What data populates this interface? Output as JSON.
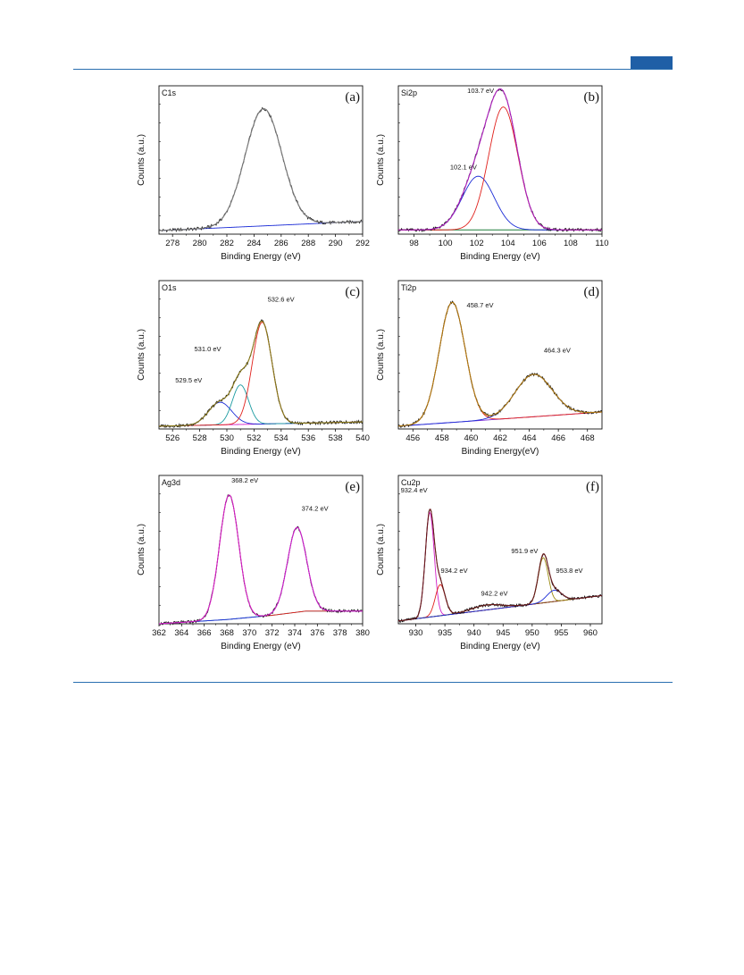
{
  "chart_data": [
    {
      "type": "line",
      "panel_letter": "(a)",
      "title": "C1s",
      "xlabel": "Binding Energy (eV)",
      "ylabel": "Counts (a.u.)",
      "xlim": [
        277,
        292
      ],
      "xticks": [
        278,
        280,
        282,
        284,
        286,
        288,
        290,
        292
      ],
      "ylim": [
        0,
        1.05
      ],
      "baseline": [
        [
          277,
          0.025
        ],
        [
          292,
          0.09
        ]
      ],
      "peaks": [
        {
          "center": 284.7,
          "height": 0.83,
          "fwhm": 3.2,
          "color": "#111111"
        }
      ],
      "envelope_color": "#7a7a7a",
      "background_color": "#1a2bd6",
      "annotations": []
    },
    {
      "type": "line",
      "panel_letter": "(b)",
      "title": "Si2p",
      "xlabel": "Binding Energy (eV)",
      "ylabel": "Counts (a.u.)",
      "xlim": [
        97,
        110
      ],
      "xticks": [
        98,
        100,
        102,
        104,
        106,
        108,
        110
      ],
      "ylim": [
        0,
        1.05
      ],
      "baseline": [
        [
          97,
          0.03
        ],
        [
          110,
          0.03
        ]
      ],
      "peaks": [
        {
          "center": 102.1,
          "height": 0.38,
          "fwhm": 2.4,
          "color": "#1a2bd6"
        },
        {
          "center": 103.7,
          "height": 0.87,
          "fwhm": 2.2,
          "color": "#e0201b"
        }
      ],
      "envelope_color": "#b01fc0",
      "background_color": "#1f7f3a",
      "annotations": [
        {
          "text": "102.1 eV",
          "x": 100.3,
          "y": 0.46
        },
        {
          "text": "103.7 eV",
          "x": 101.4,
          "y": 1.0
        }
      ]
    },
    {
      "type": "line",
      "panel_letter": "(c)",
      "title": "O1s",
      "xlabel": "Binding Energy (eV)",
      "ylabel": "Counts (a.u.)",
      "xlim": [
        525,
        540
      ],
      "xticks": [
        526,
        528,
        530,
        532,
        534,
        536,
        538,
        540
      ],
      "ylim": [
        0,
        1.05
      ],
      "baseline": [
        [
          525,
          0.02
        ],
        [
          540,
          0.05
        ]
      ],
      "peaks": [
        {
          "center": 529.5,
          "height": 0.16,
          "fwhm": 2.0,
          "color": "#1a2bd6"
        },
        {
          "center": 531.0,
          "height": 0.28,
          "fwhm": 1.4,
          "color": "#1a9aa0"
        },
        {
          "center": 532.6,
          "height": 0.72,
          "fwhm": 1.7,
          "color": "#e0201b"
        }
      ],
      "envelope_color": "#8a7a1a",
      "background_color": "#d21fc8",
      "annotations": [
        {
          "text": "529.5 eV",
          "x": 526.2,
          "y": 0.33
        },
        {
          "text": "531.0 eV",
          "x": 527.6,
          "y": 0.55
        },
        {
          "text": "532.6 eV",
          "x": 533.0,
          "y": 0.9
        }
      ]
    },
    {
      "type": "line",
      "panel_letter": "(d)",
      "title": "Ti2p",
      "xlabel": "Binding Energy(eV)",
      "ylabel": "Counts (a.u.)",
      "xlim": [
        455,
        469
      ],
      "xticks": [
        456,
        458,
        460,
        462,
        464,
        466,
        468
      ],
      "ylim": [
        0,
        1.05
      ],
      "baseline": [
        [
          455,
          0.02
        ],
        [
          469,
          0.12
        ]
      ],
      "peaks": [
        {
          "center": 458.7,
          "height": 0.85,
          "fwhm": 2.1,
          "color": "#e0201b"
        },
        {
          "center": 464.3,
          "height": 0.3,
          "fwhm": 3.0,
          "color": "#1a2bd6"
        }
      ],
      "envelope_color": "#b07a10",
      "background_color": "#7a2bd6",
      "annotations": [
        {
          "text": "458.7 eV",
          "x": 459.7,
          "y": 0.86
        },
        {
          "text": "464.3 eV",
          "x": 465.0,
          "y": 0.54
        }
      ]
    },
    {
      "type": "line",
      "panel_letter": "(e)",
      "title": "Ag3d",
      "xlabel": "Binding Energy (eV)",
      "ylabel": "Counts (a.u.)",
      "xlim": [
        362,
        380
      ],
      "xticks": [
        362,
        364,
        366,
        368,
        370,
        372,
        374,
        376,
        378,
        380
      ],
      "ylim": [
        0,
        1.05
      ],
      "baseline": [
        [
          362,
          0.0
        ],
        [
          368,
          0.03
        ],
        [
          372,
          0.06
        ],
        [
          375,
          0.09
        ],
        [
          380,
          0.09
        ]
      ],
      "peaks": [
        {
          "center": 368.2,
          "height": 0.88,
          "fwhm": 2.0,
          "color": "#e0201b"
        },
        {
          "center": 374.2,
          "height": 0.6,
          "fwhm": 2.0,
          "color": "#1a2bd6"
        }
      ],
      "envelope_color": "#d21fc8",
      "background_color": "#1a8a8a",
      "annotations": [
        {
          "text": "368.2 eV",
          "x": 368.4,
          "y": 1.0
        },
        {
          "text": "374.2 eV",
          "x": 374.6,
          "y": 0.8
        }
      ]
    },
    {
      "type": "line",
      "panel_letter": "(f)",
      "title": "Cu2p",
      "xlabel": "Binding Energy (eV)",
      "ylabel": "Counts (a.u.)",
      "xlim": [
        927,
        962
      ],
      "xticks": [
        930,
        935,
        940,
        945,
        950,
        955,
        960
      ],
      "ylim": [
        0,
        1.05
      ],
      "baseline": [
        [
          927,
          0.02
        ],
        [
          962,
          0.2
        ]
      ],
      "peaks": [
        {
          "center": 932.4,
          "height": 0.74,
          "fwhm": 1.8,
          "color": "#d21fc8"
        },
        {
          "center": 934.2,
          "height": 0.22,
          "fwhm": 2.0,
          "color": "#e0201b"
        },
        {
          "center": 942.2,
          "height": 0.035,
          "fwhm": 6.0,
          "color": "#7a5a10"
        },
        {
          "center": 951.9,
          "height": 0.32,
          "fwhm": 2.0,
          "color": "#9a8a10"
        },
        {
          "center": 953.8,
          "height": 0.08,
          "fwhm": 3.0,
          "color": "#1a2bd6"
        }
      ],
      "envelope_color": "#6a1a1a",
      "background_color": "#1a2bd6",
      "annotations": [
        {
          "text": "932.4 eV",
          "x": 927.4,
          "y": 0.93
        },
        {
          "text": "934.2 eV",
          "x": 934.3,
          "y": 0.36
        },
        {
          "text": "942.2 eV",
          "x": 941.2,
          "y": 0.2
        },
        {
          "text": "951.9 eV",
          "x": 946.4,
          "y": 0.5
        },
        {
          "text": "953.8 eV",
          "x": 954.1,
          "y": 0.36
        }
      ]
    }
  ]
}
